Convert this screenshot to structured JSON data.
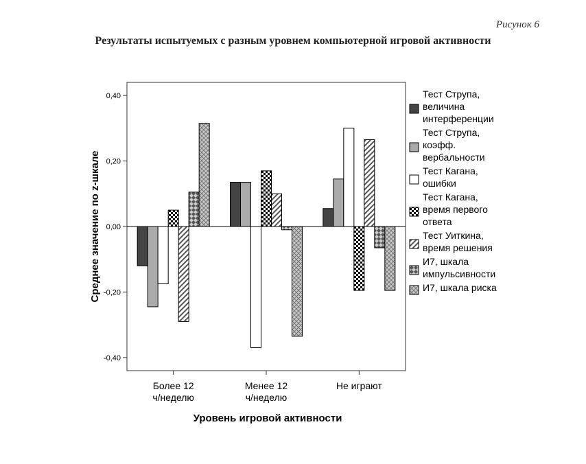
{
  "figure": {
    "label": "Рисунок 6",
    "title": "Результаты испытуемых с разным уровнем компьютерной игровой активности"
  },
  "chart_data": {
    "type": "bar",
    "title": "Результаты испытуемых с разным уровнем компьютерной игровой активности",
    "xlabel": "Уровень игровой активности",
    "ylabel": "Среднее значение по z-шкале",
    "ylim": [
      -0.44,
      0.44
    ],
    "yticks": [
      "0,40",
      "0,20",
      "0,00",
      "-0,20",
      "-0,40"
    ],
    "ytick_values": [
      0.4,
      0.2,
      0.0,
      -0.2,
      -0.4
    ],
    "categories": [
      [
        "Более 12",
        "ч/неделю"
      ],
      [
        "Менее 12",
        "ч/неделю"
      ],
      [
        "Не играют"
      ]
    ],
    "legend_position": "right",
    "series": [
      {
        "name": "Тест Струпа, величина интерференции",
        "legend_lines": [
          "Тест Струпа,",
          "величина",
          "интерференции"
        ],
        "pattern": "dark",
        "values": [
          -0.12,
          0.135,
          0.055
        ]
      },
      {
        "name": "Тест Струпа, коэфф. вербальности",
        "legend_lines": [
          "Тест Струпа,",
          "коэфф.",
          "вербальности"
        ],
        "pattern": "gray",
        "values": [
          -0.245,
          0.135,
          0.145
        ]
      },
      {
        "name": "Тест Кагана, ошибки",
        "legend_lines": [
          "Тест Кагана,",
          "ошибки"
        ],
        "pattern": "white",
        "values": [
          -0.175,
          -0.37,
          0.3
        ]
      },
      {
        "name": "Тест Кагана, время первого ответа",
        "legend_lines": [
          "Тест Кагана,",
          "время первого",
          "ответа"
        ],
        "pattern": "checker",
        "values": [
          0.05,
          0.17,
          -0.195
        ]
      },
      {
        "name": "Тест Уиткина, время решения",
        "legend_lines": [
          "Тест Уиткина,",
          "время решения"
        ],
        "pattern": "diagonal",
        "values": [
          -0.29,
          0.1,
          0.265
        ]
      },
      {
        "name": "И7, шкала импульсивности",
        "legend_lines": [
          "И7, шкала",
          "импульсивности"
        ],
        "pattern": "diamond",
        "values": [
          0.105,
          -0.01,
          -0.065
        ]
      },
      {
        "name": "И7, шкала риска",
        "legend_lines": [
          "И7, шкала риска"
        ],
        "pattern": "cross",
        "values": [
          0.315,
          -0.335,
          -0.195
        ]
      }
    ]
  }
}
